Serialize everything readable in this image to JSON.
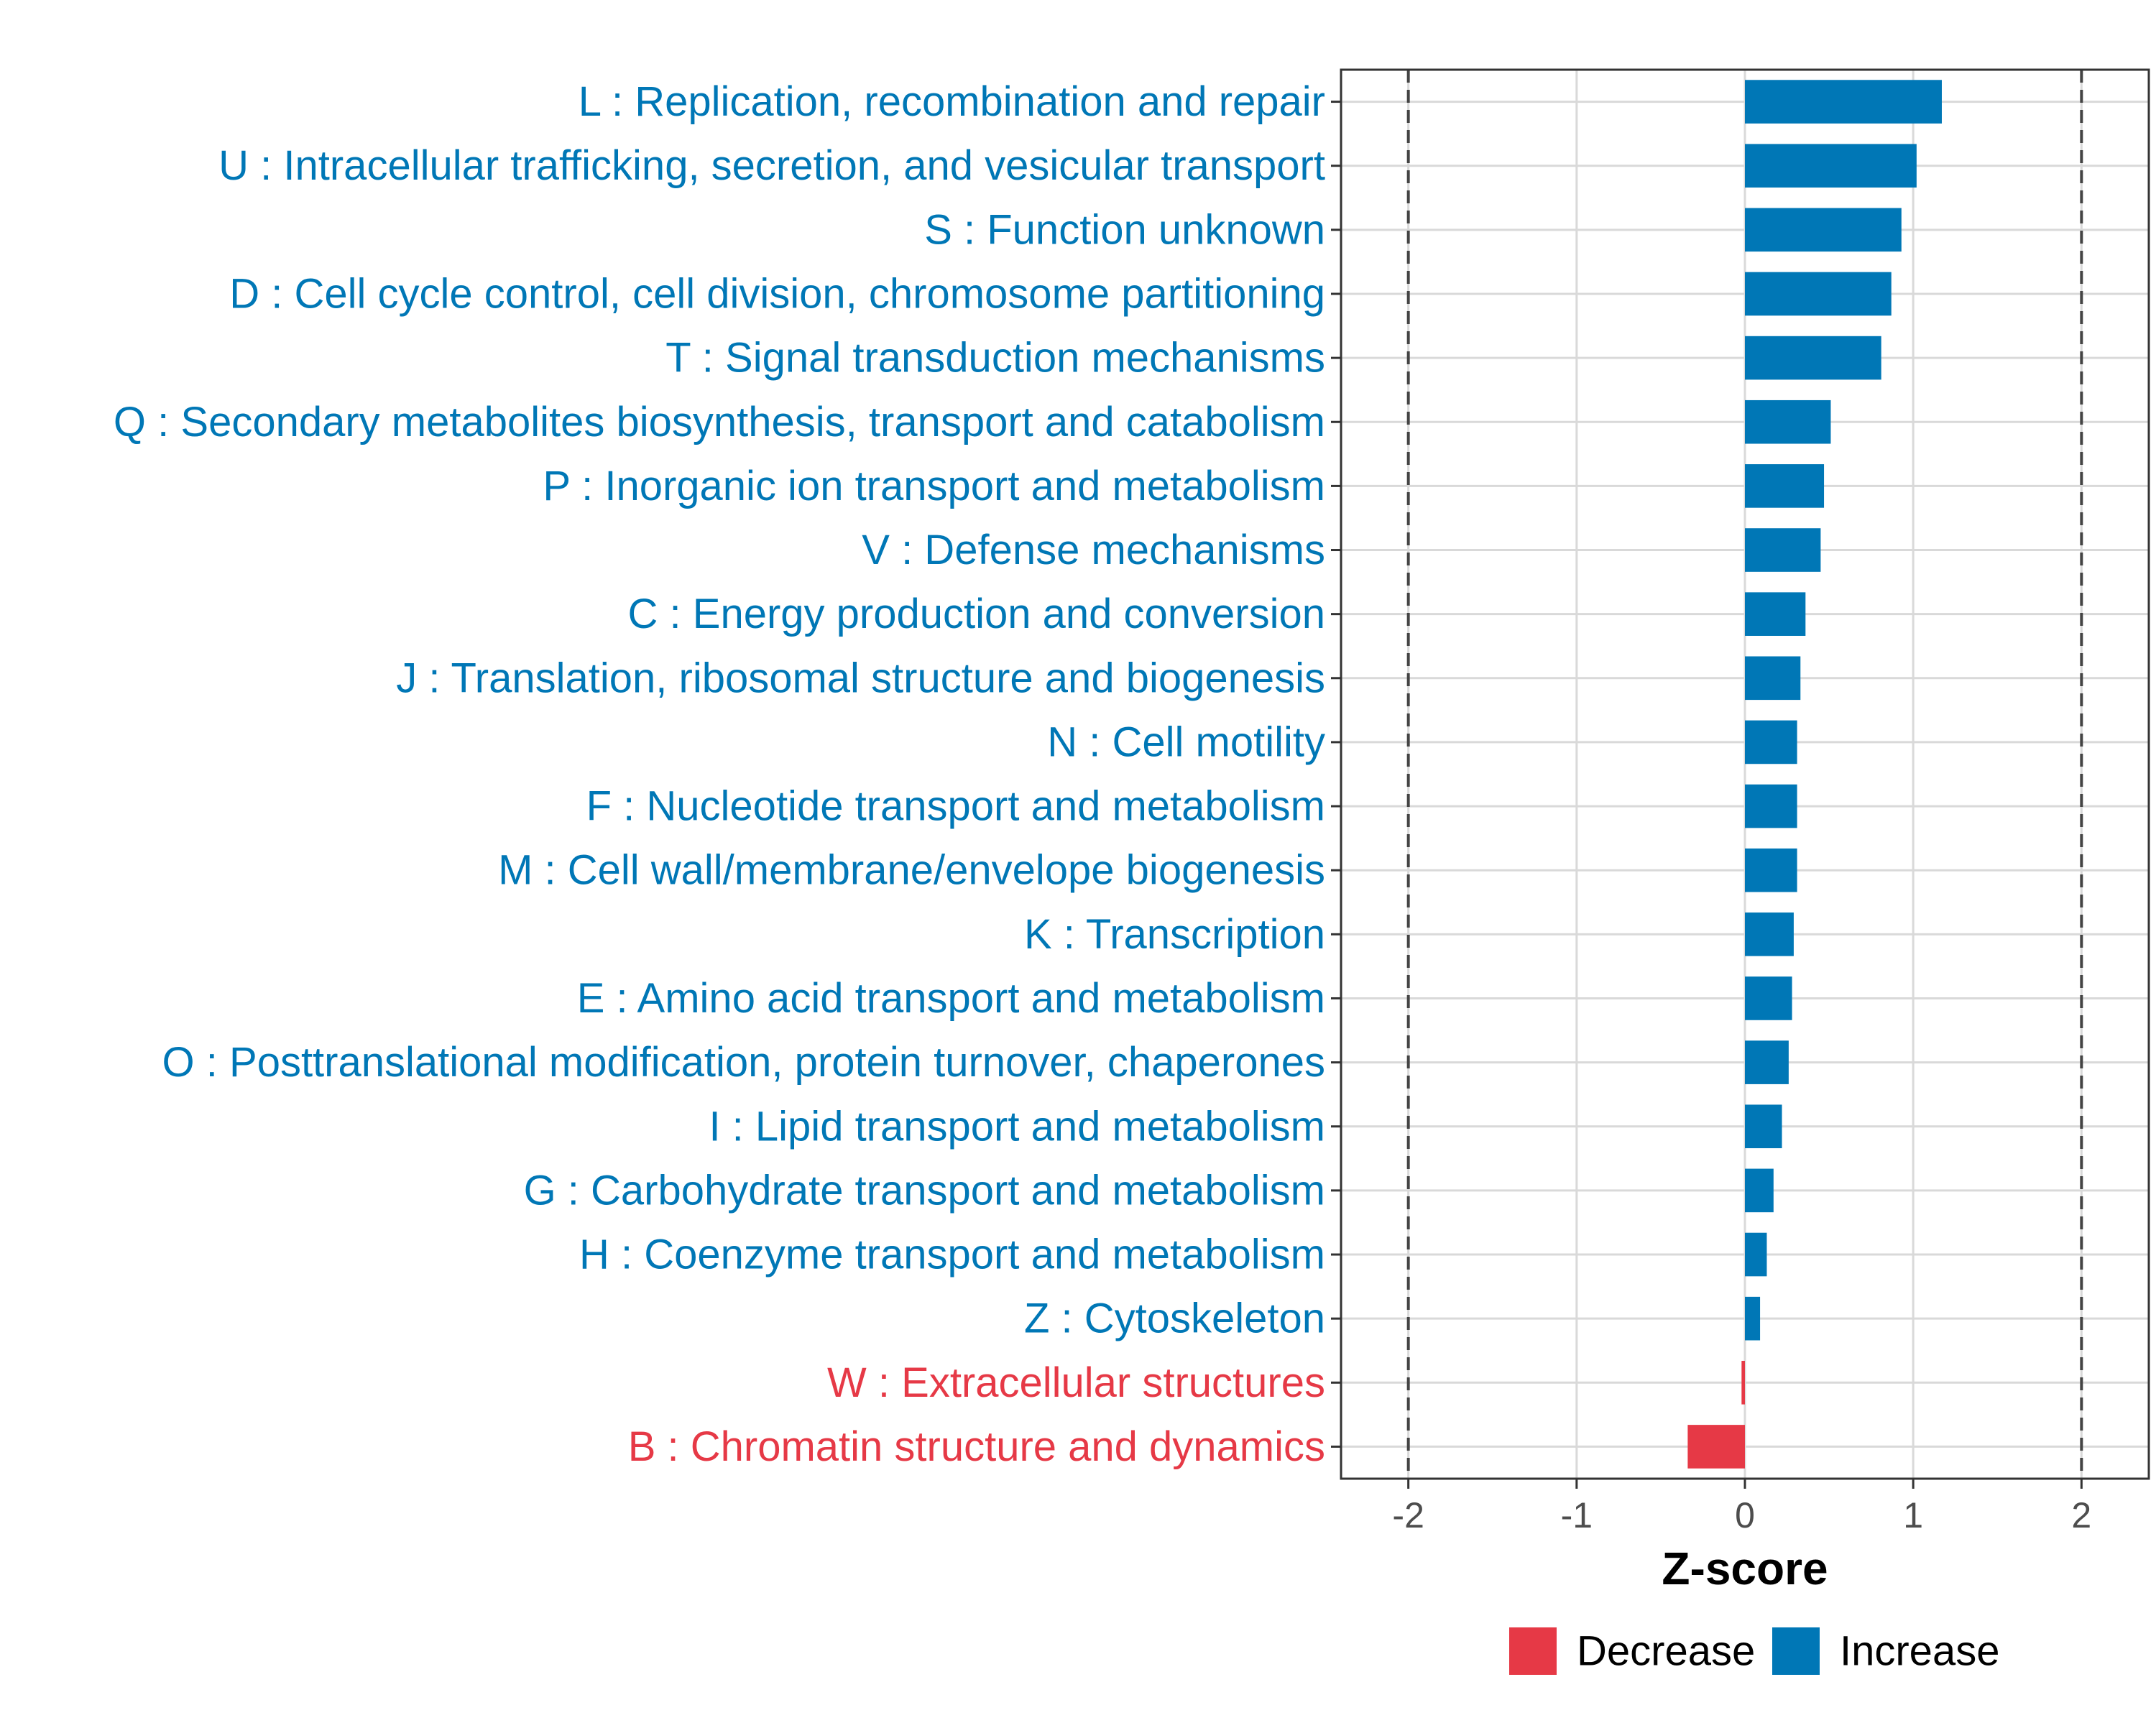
{
  "chart_data": {
    "type": "bar",
    "orientation": "horizontal",
    "xlabel": "Z-score",
    "ylabel": "",
    "xlim": [
      -2.4,
      2.4
    ],
    "xticks": [
      -2,
      -1,
      0,
      1,
      2
    ],
    "xtick_labels": [
      "-2",
      "-1",
      "0",
      "1",
      "2"
    ],
    "reference_lines": [
      -2,
      2
    ],
    "grid": true,
    "legend_position": "bottom",
    "colors": {
      "Decrease": "#e63946",
      "Increase": "#0077b6"
    },
    "legend": [
      {
        "key": "Decrease",
        "label": "Decrease"
      },
      {
        "key": "Increase",
        "label": "Increase"
      }
    ],
    "categories": [
      "L : Replication, recombination and repair",
      "U : Intracellular trafficking, secretion, and vesicular transport",
      "S : Function unknown",
      "D : Cell cycle control, cell division, chromosome partitioning",
      "T : Signal transduction mechanisms",
      "Q : Secondary metabolites biosynthesis, transport and catabolism",
      "P : Inorganic ion transport and metabolism",
      "V : Defense mechanisms",
      "C : Energy production and conversion",
      "J : Translation, ribosomal structure and biogenesis",
      "N : Cell motility",
      "F : Nucleotide transport and metabolism",
      "M : Cell wall/membrane/envelope biogenesis",
      "K : Transcription",
      "E : Amino acid transport and metabolism",
      "O : Posttranslational modification, protein turnover, chaperones",
      "I : Lipid transport and metabolism",
      "G : Carbohydrate transport and metabolism",
      "H : Coenzyme transport and metabolism",
      "Z : Cytoskeleton",
      "W : Extracellular structures",
      "B : Chromatin structure and dynamics"
    ],
    "values": [
      1.17,
      1.02,
      0.93,
      0.87,
      0.81,
      0.51,
      0.47,
      0.45,
      0.36,
      0.33,
      0.31,
      0.31,
      0.31,
      0.29,
      0.28,
      0.26,
      0.22,
      0.17,
      0.13,
      0.09,
      -0.02,
      -0.34
    ],
    "direction": [
      "Increase",
      "Increase",
      "Increase",
      "Increase",
      "Increase",
      "Increase",
      "Increase",
      "Increase",
      "Increase",
      "Increase",
      "Increase",
      "Increase",
      "Increase",
      "Increase",
      "Increase",
      "Increase",
      "Increase",
      "Increase",
      "Increase",
      "Increase",
      "Decrease",
      "Decrease"
    ]
  }
}
